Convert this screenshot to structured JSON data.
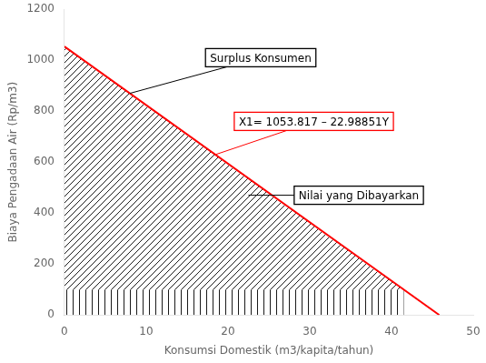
{
  "chart_data": {
    "type": "line",
    "xlabel": "Konsumsi Domestik (m3/kapita/tahun)",
    "ylabel": "Biaya Pengadaan Air (Rp/m3)",
    "xlim": [
      0,
      50
    ],
    "ylim": [
      0,
      1200
    ],
    "xticks": [
      0,
      10,
      20,
      30,
      40,
      50
    ],
    "yticks": [
      0,
      200,
      400,
      600,
      800,
      1000,
      1200
    ],
    "grid": false,
    "series": [
      {
        "type": "area",
        "color": "black",
        "x": [
          0,
          41.49103,
          0
        ],
        "values": [
          1053.817,
          100,
          100
        ]
      },
      {
        "type": "area",
        "color": "black",
        "x": [
          0,
          41.49103,
          41.49103,
          0
        ],
        "values": [
          0,
          0,
          100,
          100
        ]
      },
      {
        "type": "line",
        "color": "red",
        "x": [
          0,
          45.84103
        ],
        "values": [
          1053.817,
          0
        ]
      }
    ],
    "annotations": [
      {
        "text": "Surplus Konsumen",
        "xy": [
          8.0,
          870.0
        ],
        "xytext": [
          24.0,
          1010.0
        ],
        "color": "black"
      },
      {
        "text": "X1= 1053.817 – 22.98851Y",
        "xy": [
          18.5,
          630.0
        ],
        "xytext": [
          30.5,
          760.0
        ],
        "color": "red"
      },
      {
        "text": "Nilai yang Dibayarkan",
        "xy": [
          22.5,
          470.0
        ],
        "xytext": [
          36.0,
          470.0
        ],
        "color": "black"
      }
    ]
  }
}
